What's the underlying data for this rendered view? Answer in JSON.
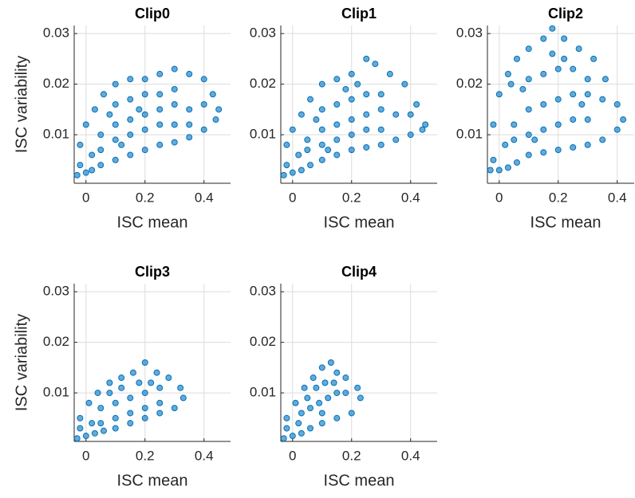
{
  "chart_data": [
    {
      "type": "scatter",
      "title": "Clip0",
      "xlabel": "ISC mean",
      "ylabel": "ISC variability",
      "color": "#0072BD",
      "grid": true,
      "xlim": [
        -0.04,
        0.49
      ],
      "ylim": [
        0.0004,
        0.0316
      ],
      "xticks": [
        0,
        0.2,
        0.4
      ],
      "yticks": [
        0.01,
        0.02,
        0.03
      ],
      "x": [
        -0.03,
        -0.02,
        0,
        0.02,
        0.05,
        0.1,
        0.15,
        0.2,
        0.25,
        0.3,
        0.35,
        0.4,
        0.44,
        0.45,
        0.43,
        0.4,
        0.35,
        0.3,
        0.25,
        0.2,
        0.15,
        0.1,
        0.06,
        0.03,
        0,
        -0.02,
        0.05,
        0.1,
        0.15,
        0.2,
        0.25,
        0.3,
        0.35,
        0.4,
        0.1,
        0.15,
        0.2,
        0.25,
        0.3,
        0.05,
        0.1,
        0.15,
        0.2,
        0.25,
        0.3,
        0.35,
        0.02,
        0.08,
        0.12,
        0.18
      ],
      "y": [
        0.002,
        0.004,
        0.0025,
        0.003,
        0.004,
        0.005,
        0.006,
        0.007,
        0.008,
        0.0085,
        0.0095,
        0.011,
        0.013,
        0.015,
        0.018,
        0.021,
        0.022,
        0.023,
        0.022,
        0.021,
        0.021,
        0.02,
        0.018,
        0.015,
        0.012,
        0.008,
        0.01,
        0.012,
        0.013,
        0.014,
        0.015,
        0.016,
        0.015,
        0.016,
        0.016,
        0.017,
        0.018,
        0.018,
        0.019,
        0.007,
        0.009,
        0.01,
        0.011,
        0.012,
        0.012,
        0.012,
        0.006,
        0.014,
        0.008,
        0.015
      ]
    },
    {
      "type": "scatter",
      "title": "Clip1",
      "xlabel": "ISC mean",
      "color": "#0072BD",
      "grid": true,
      "xlim": [
        -0.04,
        0.49
      ],
      "ylim": [
        0.0004,
        0.0316
      ],
      "xticks": [
        0,
        0.2,
        0.4
      ],
      "yticks": [
        0.01,
        0.02,
        0.03
      ],
      "x": [
        -0.03,
        -0.02,
        0,
        0.03,
        0.06,
        0.1,
        0.15,
        0.2,
        0.25,
        0.3,
        0.35,
        0.4,
        0.44,
        0.45,
        0.42,
        0.38,
        0.33,
        0.28,
        0.25,
        0.2,
        0.15,
        0.1,
        0.06,
        0.03,
        0,
        -0.02,
        0.05,
        0.1,
        0.15,
        0.2,
        0.25,
        0.3,
        0.35,
        0.4,
        0.1,
        0.15,
        0.2,
        0.25,
        0.3,
        0.05,
        0.1,
        0.15,
        0.2,
        0.25,
        0.3,
        0.02,
        0.08,
        0.12,
        0.18,
        0.22
      ],
      "y": [
        0.002,
        0.004,
        0.0025,
        0.003,
        0.004,
        0.005,
        0.006,
        0.007,
        0.0075,
        0.008,
        0.009,
        0.01,
        0.011,
        0.012,
        0.016,
        0.02,
        0.022,
        0.024,
        0.025,
        0.022,
        0.021,
        0.02,
        0.017,
        0.014,
        0.011,
        0.008,
        0.009,
        0.011,
        0.012,
        0.013,
        0.014,
        0.015,
        0.014,
        0.014,
        0.015,
        0.016,
        0.017,
        0.018,
        0.018,
        0.007,
        0.008,
        0.009,
        0.01,
        0.011,
        0.011,
        0.006,
        0.013,
        0.007,
        0.019,
        0.02
      ]
    },
    {
      "type": "scatter",
      "title": "Clip2",
      "xlabel": "ISC mean",
      "color": "#0072BD",
      "grid": true,
      "xlim": [
        -0.04,
        0.49
      ],
      "ylim": [
        0.0004,
        0.0316
      ],
      "xticks": [
        0,
        0.2,
        0.4
      ],
      "yticks": [
        0.01,
        0.02,
        0.03
      ],
      "x": [
        -0.03,
        -0.02,
        0,
        0.03,
        0.06,
        0.1,
        0.15,
        0.2,
        0.25,
        0.3,
        0.35,
        0.4,
        0.42,
        0.4,
        0.36,
        0.32,
        0.27,
        0.22,
        0.18,
        0.15,
        0.1,
        0.06,
        0.03,
        0,
        -0.02,
        0.05,
        0.1,
        0.15,
        0.2,
        0.25,
        0.3,
        0.35,
        0.1,
        0.15,
        0.2,
        0.25,
        0.3,
        0.05,
        0.1,
        0.15,
        0.2,
        0.25,
        0.3,
        0.02,
        0.08,
        0.12,
        0.18,
        0.22,
        0.04,
        0.28
      ],
      "y": [
        0.003,
        0.005,
        0.003,
        0.0035,
        0.0045,
        0.006,
        0.0065,
        0.007,
        0.0075,
        0.008,
        0.009,
        0.011,
        0.013,
        0.016,
        0.021,
        0.025,
        0.027,
        0.029,
        0.031,
        0.029,
        0.027,
        0.025,
        0.022,
        0.018,
        0.012,
        0.012,
        0.015,
        0.016,
        0.017,
        0.018,
        0.018,
        0.017,
        0.021,
        0.022,
        0.023,
        0.023,
        0.021,
        0.009,
        0.01,
        0.011,
        0.012,
        0.013,
        0.013,
        0.008,
        0.019,
        0.009,
        0.026,
        0.025,
        0.02,
        0.016
      ]
    },
    {
      "type": "scatter",
      "title": "Clip3",
      "xlabel": "ISC mean",
      "ylabel": "ISC variability",
      "color": "#0072BD",
      "grid": true,
      "xlim": [
        -0.04,
        0.49
      ],
      "ylim": [
        0.0004,
        0.0316
      ],
      "xticks": [
        0,
        0.2,
        0.4
      ],
      "yticks": [
        0.01,
        0.02,
        0.03
      ],
      "x": [
        -0.03,
        -0.02,
        0,
        0.03,
        0.06,
        0.1,
        0.15,
        0.2,
        0.25,
        0.3,
        0.33,
        0.32,
        0.28,
        0.24,
        0.2,
        0.16,
        0.12,
        0.08,
        0.04,
        0.01,
        -0.02,
        0.05,
        0.1,
        0.15,
        0.2,
        0.25,
        0.05,
        0.1,
        0.15,
        0.2,
        0.25,
        0.02,
        0.08,
        0.12,
        0.18,
        0.22
      ],
      "y": [
        0.001,
        0.003,
        0.0015,
        0.002,
        0.0025,
        0.003,
        0.004,
        0.005,
        0.006,
        0.007,
        0.009,
        0.011,
        0.013,
        0.014,
        0.016,
        0.014,
        0.013,
        0.012,
        0.01,
        0.008,
        0.005,
        0.007,
        0.008,
        0.009,
        0.01,
        0.011,
        0.004,
        0.005,
        0.006,
        0.007,
        0.008,
        0.004,
        0.01,
        0.011,
        0.012,
        0.012
      ]
    },
    {
      "type": "scatter",
      "title": "Clip4",
      "xlabel": "ISC mean",
      "color": "#0072BD",
      "grid": true,
      "xlim": [
        -0.04,
        0.49
      ],
      "ylim": [
        0.0004,
        0.0316
      ],
      "xticks": [
        0,
        0.2,
        0.4
      ],
      "yticks": [
        0.01,
        0.02,
        0.03
      ],
      "x": [
        -0.03,
        -0.02,
        0,
        0.03,
        0.06,
        0.1,
        0.15,
        0.2,
        0.23,
        0.22,
        0.18,
        0.15,
        0.13,
        0.1,
        0.07,
        0.04,
        0.01,
        -0.02,
        0.03,
        0.06,
        0.09,
        0.12,
        0.15,
        0.18,
        0.05,
        0.08,
        0.11,
        0.14,
        0.02,
        0.1
      ],
      "y": [
        0.001,
        0.003,
        0.0015,
        0.002,
        0.003,
        0.004,
        0.005,
        0.006,
        0.009,
        0.011,
        0.013,
        0.014,
        0.016,
        0.015,
        0.013,
        0.011,
        0.008,
        0.005,
        0.006,
        0.007,
        0.008,
        0.009,
        0.01,
        0.01,
        0.009,
        0.011,
        0.012,
        0.012,
        0.004,
        0.006
      ]
    }
  ]
}
